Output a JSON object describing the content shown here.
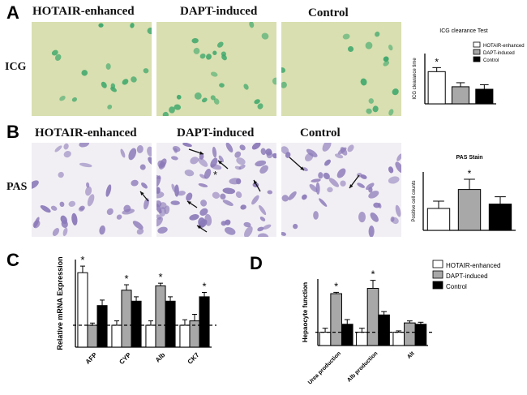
{
  "panels": {
    "A": {
      "letter": "A",
      "headers": [
        "HOTAIR-enhanced",
        "DAPT-induced",
        "Control"
      ],
      "row_label": "ICG"
    },
    "B": {
      "letter": "B",
      "headers": [
        "HOTAIR-enhanced",
        "DAPT-induced",
        "Control"
      ],
      "row_label": "PAS"
    },
    "C": {
      "letter": "C"
    },
    "D": {
      "letter": "D"
    }
  },
  "colors": {
    "hotair": "#ffffff",
    "dapt": "#a8a8a8",
    "control": "#000000",
    "icg_bg": "#d9dfb0",
    "icg_cell": "#3aa66a",
    "pas_bg": "#f2eff4",
    "pas_cell": "#8b79b8"
  },
  "chart_data": [
    {
      "type": "bar",
      "title": "ICG clearance Test",
      "ylabel": "ICG clearance time",
      "categories": [
        "HOTAIR-enhanced",
        "DAPT-induced",
        "Control"
      ],
      "values": [
        64,
        34,
        29
      ],
      "errors": [
        8,
        8,
        9
      ],
      "ylim": [
        0,
        100
      ],
      "legend": [
        "HOTAIR-enhanced",
        "DAPT-induced",
        "Control"
      ],
      "legend_position": "top-right",
      "significance": [
        "*",
        "",
        ""
      ]
    },
    {
      "type": "bar",
      "title": "PAS Stain",
      "ylabel": "Positive cell counts",
      "categories": [
        "HOTAIR-enhanced",
        "DAPT-induced",
        "Control"
      ],
      "values": [
        15,
        28,
        18
      ],
      "errors": [
        5,
        7,
        5
      ],
      "ylim": [
        0,
        40
      ],
      "significance": [
        "",
        "*",
        ""
      ]
    },
    {
      "type": "bar",
      "ylabel": "Relative mRNA Expression",
      "categories": [
        "AFP",
        "CYP",
        "Alb",
        "CK7"
      ],
      "series": [
        {
          "name": "HOTAIR-enhanced",
          "values": [
            3.4,
            1.0,
            1.0,
            1.0
          ],
          "errors": [
            0.3,
            0.2,
            0.2,
            0.25
          ]
        },
        {
          "name": "DAPT-induced",
          "values": [
            1.0,
            2.6,
            2.8,
            1.2
          ],
          "errors": [
            0.1,
            0.25,
            0.12,
            0.3
          ]
        },
        {
          "name": "Control",
          "values": [
            1.9,
            2.1,
            2.1,
            2.3
          ],
          "errors": [
            0.25,
            0.2,
            0.2,
            0.2
          ]
        }
      ],
      "significance": [
        [
          "*",
          "",
          ""
        ],
        [
          "",
          "*",
          ""
        ],
        [
          "",
          "*",
          ""
        ],
        [
          "",
          "",
          "*"
        ]
      ],
      "ylim": [
        0,
        4
      ],
      "reference_line": 1
    },
    {
      "type": "bar",
      "ylabel": "Hepaocyte function",
      "categories": [
        "Urea production",
        "Alb production",
        "Alt"
      ],
      "series": [
        {
          "name": "HOTAIR-enhanced",
          "values": [
            1.0,
            1.0,
            1.0
          ],
          "errors": [
            0.3,
            0.3,
            0.1
          ]
        },
        {
          "name": "DAPT-induced",
          "values": [
            3.9,
            4.3,
            1.7
          ],
          "errors": [
            0.1,
            0.6,
            0.15
          ]
        },
        {
          "name": "Control",
          "values": [
            1.6,
            2.3,
            1.6
          ],
          "errors": [
            0.35,
            0.25,
            0.15
          ]
        }
      ],
      "significance": [
        [
          "",
          "*",
          ""
        ],
        [
          "",
          "*",
          ""
        ],
        [
          "",
          "",
          ""
        ]
      ],
      "ylim": [
        0,
        5
      ],
      "reference_line": 1,
      "legend": [
        "HOTAIR-enhanced",
        "DAPT-induced",
        "Control"
      ],
      "legend_position": "right"
    }
  ]
}
